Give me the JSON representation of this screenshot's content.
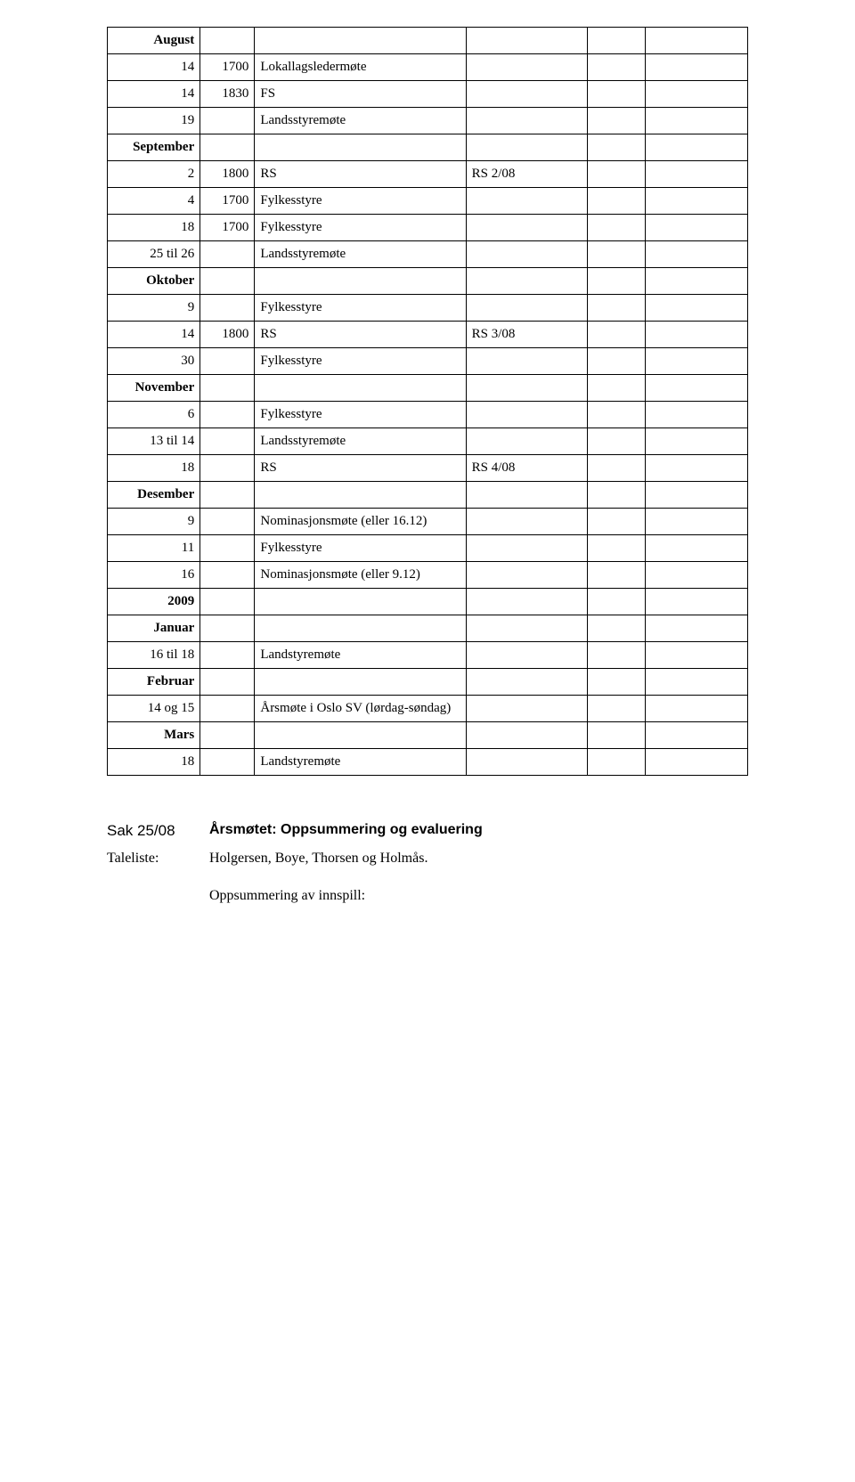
{
  "table": {
    "col_widths_pct": [
      14.5,
      8.5,
      33,
      19,
      9,
      16
    ],
    "rows": [
      {
        "c1": {
          "t": "August",
          "b": true
        }
      },
      {
        "c1": {
          "t": "14"
        },
        "c2": {
          "t": "1700"
        },
        "c3": {
          "t": "Lokallagsledermøte"
        }
      },
      {
        "c1": {
          "t": "14"
        },
        "c2": {
          "t": "1830"
        },
        "c3": {
          "t": "FS"
        }
      },
      {
        "c1": {
          "t": "19"
        },
        "c3": {
          "t": "Landsstyremøte"
        }
      },
      {
        "c1": {
          "t": "September",
          "b": true
        }
      },
      {
        "c1": {
          "t": "2"
        },
        "c2": {
          "t": "1800"
        },
        "c3": {
          "t": "RS"
        },
        "c4": {
          "t": "RS 2/08"
        }
      },
      {
        "c1": {
          "t": "4"
        },
        "c2": {
          "t": "1700"
        },
        "c3": {
          "t": "Fylkesstyre"
        }
      },
      {
        "c1": {
          "t": "18"
        },
        "c2": {
          "t": "1700"
        },
        "c3": {
          "t": "Fylkesstyre"
        }
      },
      {
        "c1": {
          "t": "25 til 26"
        },
        "c3": {
          "t": "Landsstyremøte"
        }
      },
      {
        "c1": {
          "t": "Oktober",
          "b": true
        }
      },
      {
        "c1": {
          "t": "9"
        },
        "c3": {
          "t": "Fylkesstyre"
        }
      },
      {
        "c1": {
          "t": "14"
        },
        "c2": {
          "t": "1800"
        },
        "c3": {
          "t": "RS"
        },
        "c4": {
          "t": "RS 3/08"
        }
      },
      {
        "c1": {
          "t": "30"
        },
        "c3": {
          "t": "Fylkesstyre"
        }
      },
      {
        "c1": {
          "t": "November",
          "b": true
        }
      },
      {
        "c1": {
          "t": "6"
        },
        "c3": {
          "t": "Fylkesstyre"
        }
      },
      {
        "c1": {
          "t": "13 til 14"
        },
        "c3": {
          "t": "Landsstyremøte"
        }
      },
      {
        "c1": {
          "t": "18"
        },
        "c3": {
          "t": "RS"
        },
        "c4": {
          "t": "RS 4/08"
        }
      },
      {
        "c1": {
          "t": "Desember",
          "b": true
        }
      },
      {
        "c1": {
          "t": "9"
        },
        "c3": {
          "t": "Nominasjonsmøte (eller 16.12)"
        }
      },
      {
        "c1": {
          "t": "11"
        },
        "c3": {
          "t": "Fylkesstyre"
        }
      },
      {
        "c1": {
          "t": "16"
        },
        "c3": {
          "t": "Nominasjonsmøte (eller 9.12)"
        }
      },
      {
        "c1": {
          "t": "2009",
          "b": true
        }
      },
      {
        "c1": {
          "t": "Januar",
          "b": true
        }
      },
      {
        "c1": {
          "t": "16 til 18"
        },
        "c3": {
          "t": "Landstyremøte"
        }
      },
      {
        "c1": {
          "t": "Februar",
          "b": true
        }
      },
      {
        "c1": {
          "t": "14 og 15"
        },
        "c3": {
          "t": "Årsmøte i Oslo SV (lørdag-søndag)"
        }
      },
      {
        "c1": {
          "t": "Mars",
          "b": true
        }
      },
      {
        "c1": {
          "t": "18"
        },
        "c3": {
          "t": "Landstyremøte"
        }
      }
    ]
  },
  "footer": {
    "sak_label": "Sak 25/08",
    "sak_title": "Årsmøtet: Oppsummering og evaluering",
    "taleliste_label": "Taleliste:",
    "taleliste_text": "Holgersen, Boye, Thorsen og Holmås.",
    "opps_label": "Oppsummering av innspill:"
  }
}
